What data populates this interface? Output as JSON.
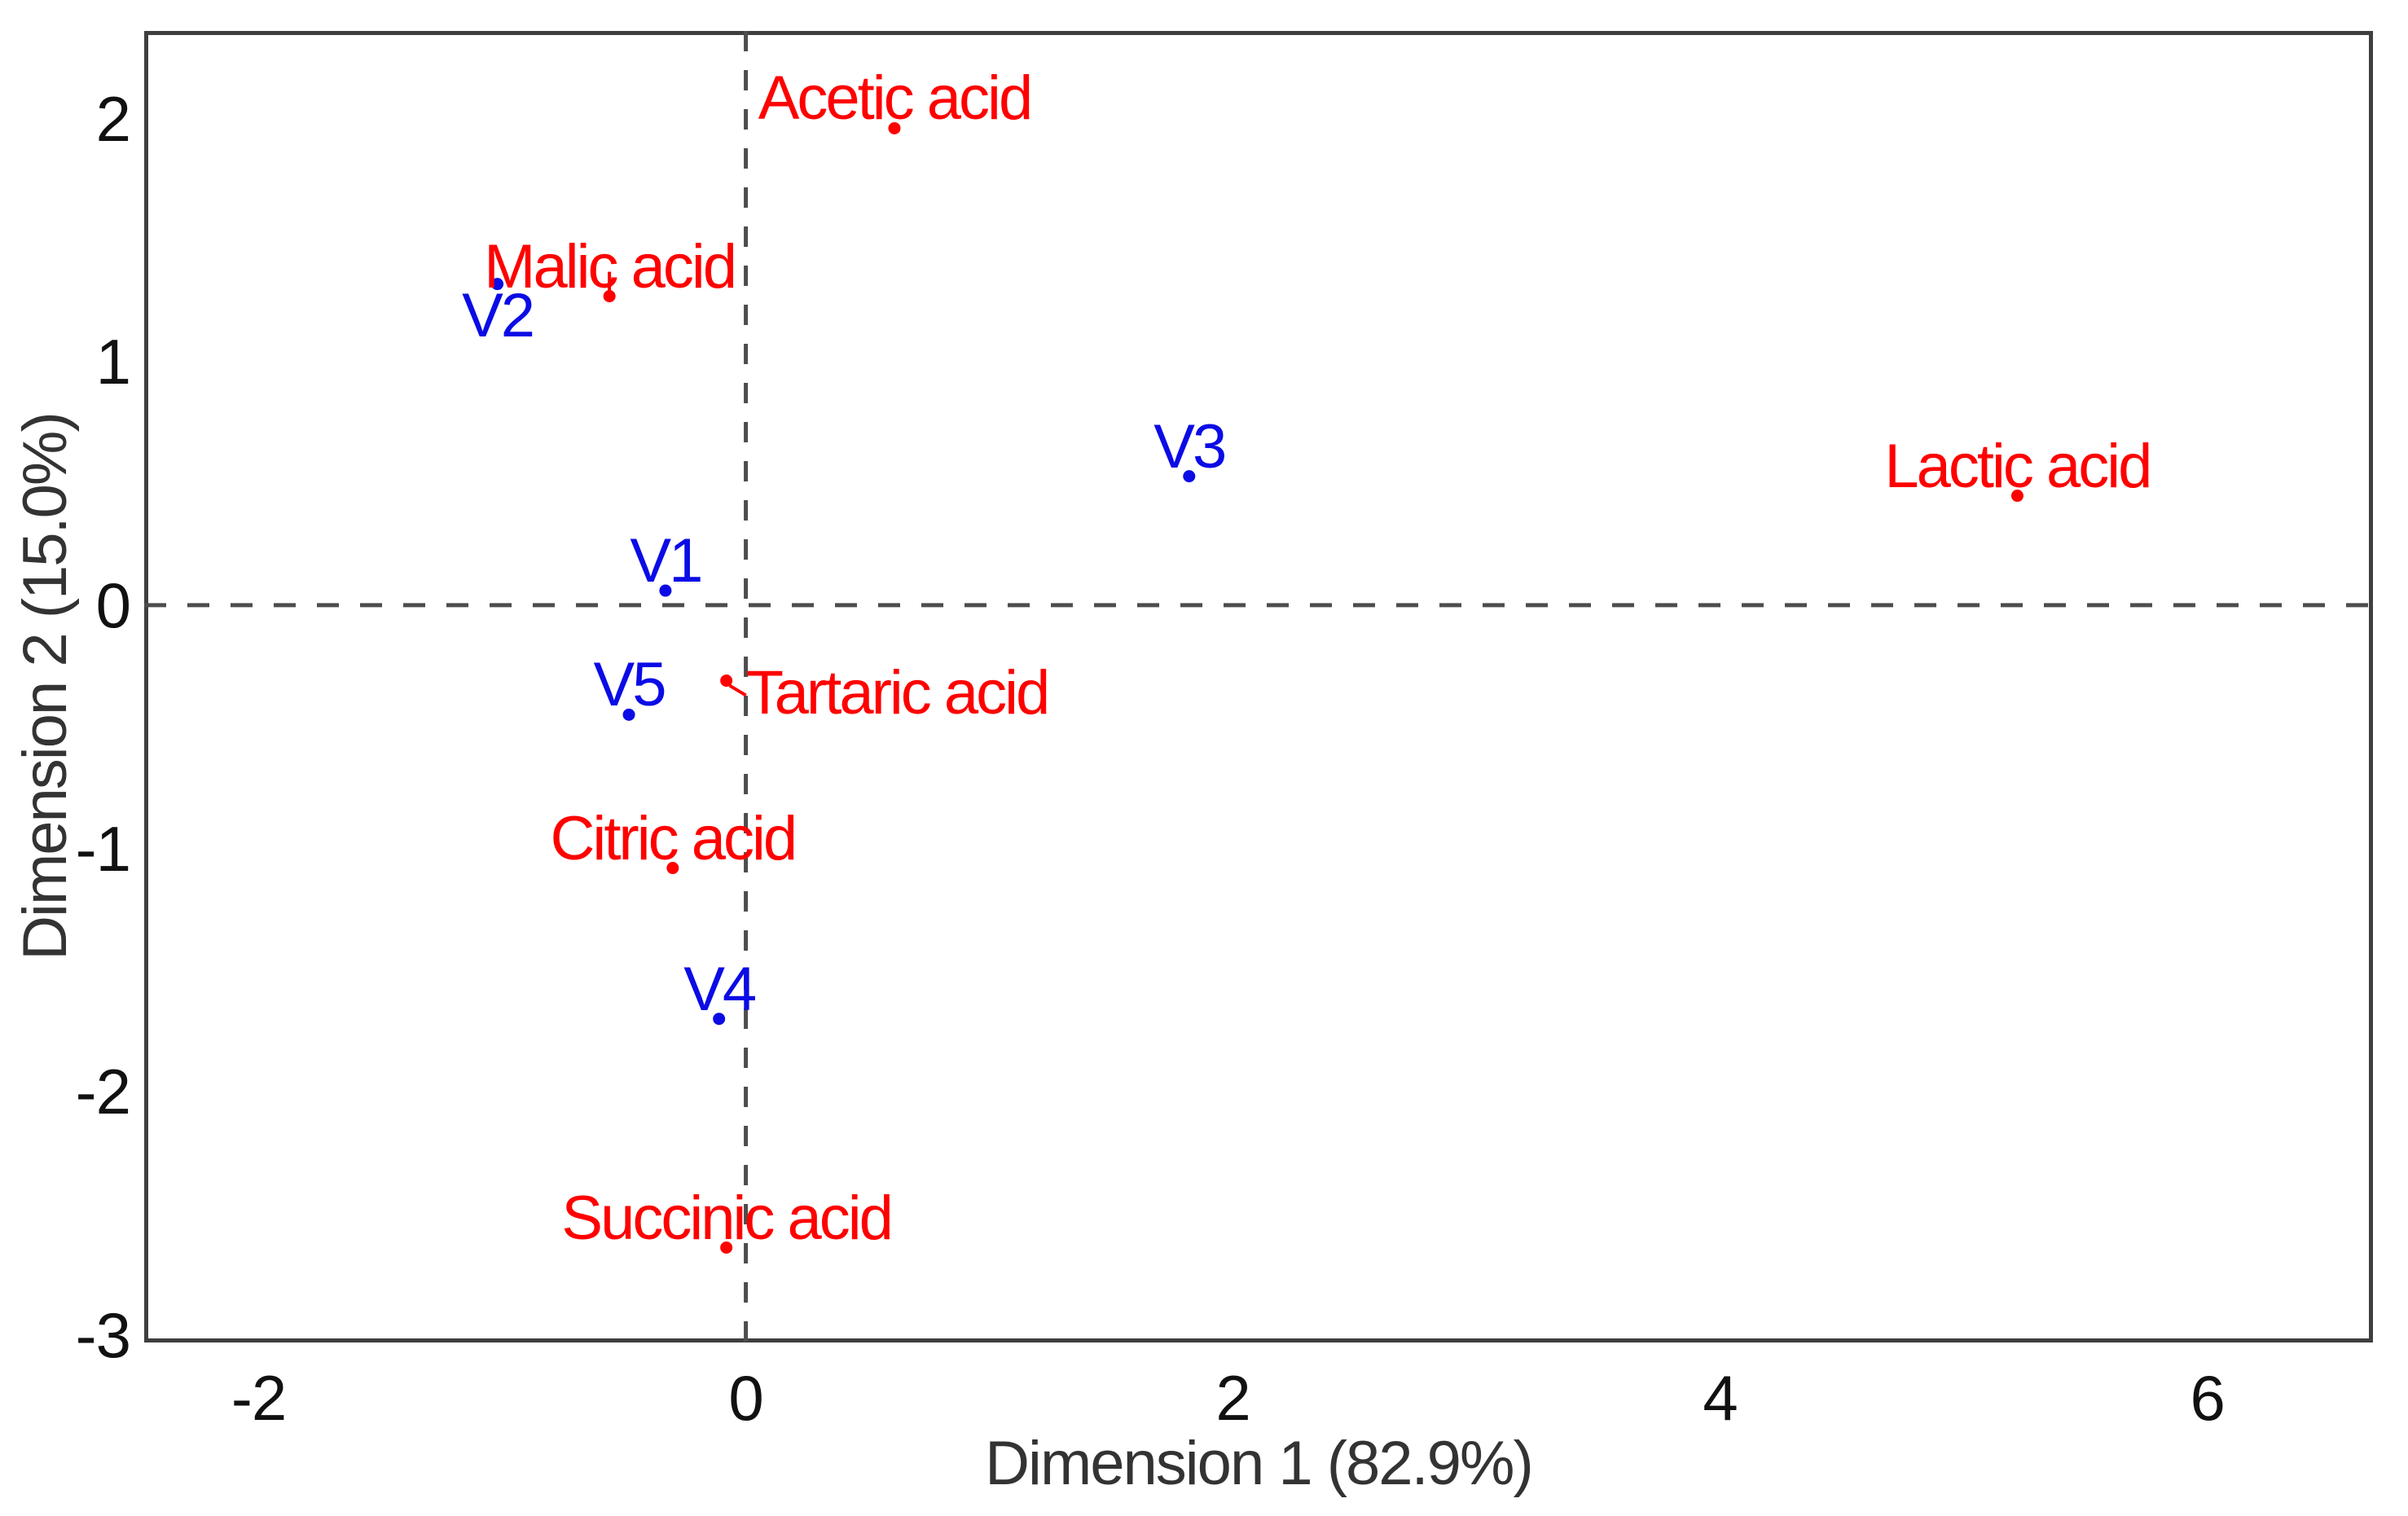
{
  "figure": {
    "background": "#ffffff",
    "border_color": "#3f3f3f",
    "dashed_line_color": "#4d4d4d",
    "tick_color": "#111111",
    "axis_title_color": "#333333"
  },
  "chart_data": {
    "type": "scatter",
    "title": "",
    "xlabel": "Dimension 1 (82.9%)",
    "ylabel": "Dimension 2 (15.0%)",
    "xlim": [
      -2.47,
      6.68
    ],
    "ylim": [
      -3.03,
      2.36
    ],
    "x_ticks": [
      -2,
      0,
      2,
      4,
      6
    ],
    "y_ticks": [
      2,
      1,
      0,
      -1,
      -2,
      -3
    ],
    "grid": false,
    "legend": "none",
    "reference_lines": {
      "vertical_x": 0,
      "horizontal_y": 0,
      "style": "dashed"
    },
    "series": [
      {
        "name": "samples",
        "color": "#0b0be6",
        "points": [
          {
            "label": "V1",
            "x": -0.33,
            "y": 0.06,
            "label_pos": "above"
          },
          {
            "label": "V2",
            "x": -1.02,
            "y": 1.32,
            "label_pos": "below"
          },
          {
            "label": "V3",
            "x": 1.82,
            "y": 0.53,
            "label_pos": "above"
          },
          {
            "label": "V4",
            "x": -0.11,
            "y": -1.7,
            "label_pos": "above"
          },
          {
            "label": "V5",
            "x": -0.48,
            "y": -0.45,
            "label_pos": "above"
          }
        ]
      },
      {
        "name": "variables",
        "color": "#ff0000",
        "points": [
          {
            "label": "Acetic acid",
            "x": 0.61,
            "y": 1.96,
            "label_pos": "above"
          },
          {
            "label": "Malic acid",
            "x": -0.56,
            "y": 1.27,
            "label_pos": "above",
            "leader": "vertical"
          },
          {
            "label": "Lactic acid",
            "x": 5.22,
            "y": 0.45,
            "label_pos": "above"
          },
          {
            "label": "Tartaric acid",
            "x": -0.08,
            "y": -0.31,
            "label_pos": "right",
            "leader": "diagonal"
          },
          {
            "label": "Citric acid",
            "x": -0.3,
            "y": -1.08,
            "label_pos": "above"
          },
          {
            "label": "Succinic acid",
            "x": -0.08,
            "y": -2.64,
            "label_pos": "above"
          }
        ]
      }
    ]
  }
}
